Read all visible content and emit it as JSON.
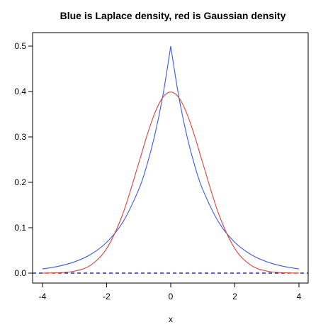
{
  "chart_data": {
    "type": "line",
    "title": "Blue is Laplace density, red is Gaussian density",
    "xlabel": "x",
    "ylabel": "",
    "xlim": [
      -4,
      4
    ],
    "ylim": [
      0,
      0.5
    ],
    "x_ticks": [
      -4,
      -2,
      0,
      2,
      4
    ],
    "y_ticks": [
      0.0,
      0.1,
      0.2,
      0.3,
      0.4,
      0.5
    ],
    "x_tick_labels": [
      "-4",
      "-2",
      "0",
      "2",
      "4"
    ],
    "y_tick_labels": [
      "0.0",
      "0.1",
      "0.2",
      "0.3",
      "0.4",
      "0.5"
    ],
    "grid": false,
    "x": [
      -4.0,
      -3.5,
      -3.0,
      -2.5,
      -2.0,
      -1.5,
      -1.0,
      -0.75,
      -0.5,
      -0.25,
      0.0,
      0.25,
      0.5,
      0.75,
      1.0,
      1.5,
      2.0,
      2.5,
      3.0,
      3.5,
      4.0
    ],
    "series": [
      {
        "color": "#3b5bdb",
        "values": [
          0.0092,
          0.0151,
          0.0249,
          0.041,
          0.0677,
          0.1116,
          0.1839,
          0.2362,
          0.3033,
          0.3894,
          0.5,
          0.3894,
          0.3033,
          0.2362,
          0.1839,
          0.1116,
          0.0677,
          0.041,
          0.0249,
          0.0151,
          0.0092
        ]
      },
      {
        "color": "#d9443f",
        "values": [
          0.0001,
          0.0009,
          0.0044,
          0.0175,
          0.054,
          0.1295,
          0.242,
          0.3011,
          0.3521,
          0.3867,
          0.3989,
          0.3867,
          0.3521,
          0.3011,
          0.242,
          0.1295,
          0.054,
          0.0175,
          0.0044,
          0.0009,
          0.0001
        ]
      }
    ],
    "reference_lines": [
      {
        "y": 0,
        "style": "dashed",
        "color": "#000080"
      }
    ]
  }
}
